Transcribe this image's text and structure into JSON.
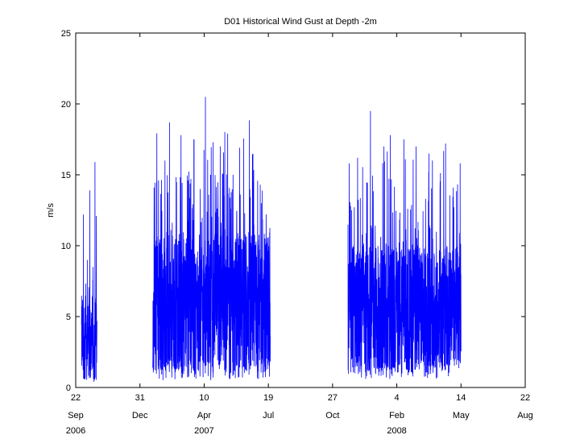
{
  "chart_data": {
    "type": "line",
    "title": "D01 Historical Wind Gust at Depth -2m",
    "xlabel": "",
    "ylabel": "m/s",
    "grid": false,
    "legend": "none",
    "series_color": "#0000ff",
    "xlim": [
      "2006-09-22",
      "2008-08-22"
    ],
    "ylim": [
      0,
      25
    ],
    "y_ticks": [
      0,
      5,
      10,
      15,
      20,
      25
    ],
    "x_ticks": [
      {
        "date": "2006-09-22",
        "day": "22",
        "month": "Sep",
        "year": "2006"
      },
      {
        "date": "2006-12-31",
        "day": "31",
        "month": "Dec",
        "year": ""
      },
      {
        "date": "2007-04-10",
        "day": "10",
        "month": "Apr",
        "year": "2007"
      },
      {
        "date": "2007-07-19",
        "day": "19",
        "month": "Jul",
        "year": ""
      },
      {
        "date": "2007-10-27",
        "day": "27",
        "month": "Oct",
        "year": ""
      },
      {
        "date": "2008-02-04",
        "day": "4",
        "month": "Feb",
        "year": "2008"
      },
      {
        "date": "2008-05-14",
        "day": "14",
        "month": "May",
        "year": ""
      },
      {
        "date": "2008-08-22",
        "day": "22",
        "month": "Aug",
        "year": ""
      }
    ],
    "series": [
      {
        "segments": [
          {
            "start": "2006-10-01",
            "end": "2006-10-25",
            "base": 3.5,
            "spread": 3.0,
            "floor": 0.2,
            "peaks": [
              [
                "2006-10-04",
                12.2
              ],
              [
                "2006-10-10",
                9.0
              ],
              [
                "2006-10-14",
                13.9
              ],
              [
                "2006-10-19",
                8.5
              ],
              [
                "2006-10-22",
                15.9
              ],
              [
                "2006-10-24",
                12.1
              ]
            ]
          },
          {
            "start": "2007-01-20",
            "end": "2007-07-22",
            "base": 6.0,
            "spread": 5.0,
            "floor": 0.5,
            "peaks": [
              [
                "2007-01-22",
                14.1
              ],
              [
                "2007-02-08",
                16.0
              ],
              [
                "2007-02-15",
                18.7
              ],
              [
                "2007-03-05",
                17.8
              ],
              [
                "2007-03-25",
                17.5
              ],
              [
                "2007-04-12",
                20.5
              ],
              [
                "2007-04-20",
                15.0
              ],
              [
                "2007-05-05",
                17.0
              ],
              [
                "2007-05-25",
                15.0
              ],
              [
                "2007-06-05",
                13.0
              ],
              [
                "2007-06-20",
                14.0
              ],
              [
                "2007-07-08",
                13.0
              ],
              [
                "2007-07-20",
                5.0
              ]
            ]
          },
          {
            "start": "2007-11-20",
            "end": "2008-05-14",
            "base": 5.5,
            "spread": 4.5,
            "floor": 0.6,
            "peaks": [
              [
                "2007-11-22",
                15.8
              ],
              [
                "2007-12-05",
                16.2
              ],
              [
                "2007-12-25",
                19.5
              ],
              [
                "2008-01-15",
                17.0
              ],
              [
                "2008-01-25",
                17.8
              ],
              [
                "2008-02-15",
                17.5
              ],
              [
                "2008-03-05",
                17.0
              ],
              [
                "2008-03-25",
                16.5
              ],
              [
                "2008-04-20",
                17.2
              ],
              [
                "2008-05-02",
                14.1
              ],
              [
                "2008-05-12",
                10.9
              ]
            ]
          }
        ]
      }
    ]
  }
}
